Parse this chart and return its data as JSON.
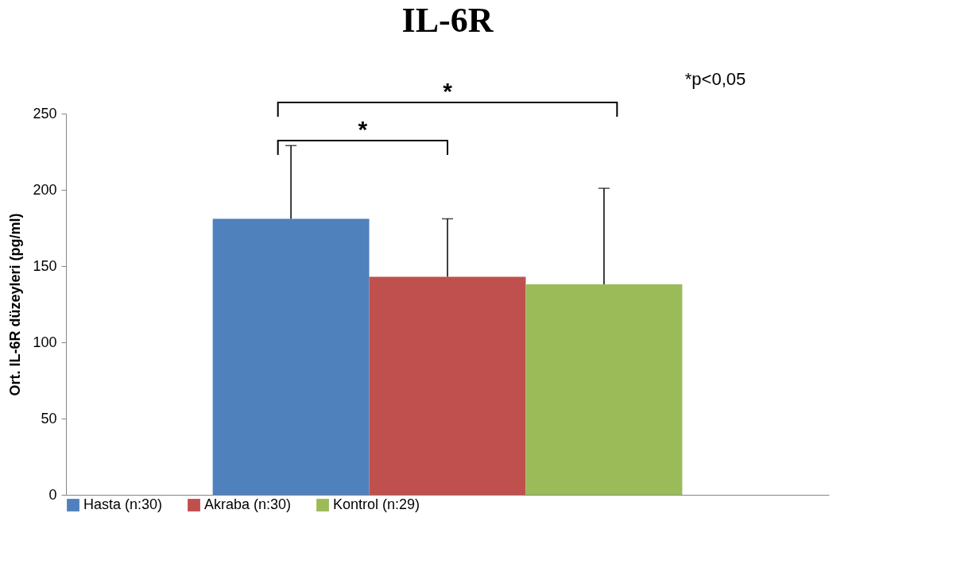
{
  "chart_data": {
    "type": "bar",
    "title": "IL-6R",
    "ylabel": "Ort. IL-6R düzeyleri  (pg/ml)",
    "categories": [
      null
    ],
    "series": [
      {
        "name": "Hasta (n:30)",
        "color": "#4f81bd",
        "values": [
          181
        ],
        "errors": [
          [
            181,
            229
          ]
        ]
      },
      {
        "name": "Akraba (n:30)",
        "color": "#c0504d",
        "values": [
          143
        ],
        "errors": [
          [
            143,
            181
          ]
        ]
      },
      {
        "name": "Kontrol (n:29)",
        "color": "#9bbb59",
        "values": [
          138
        ],
        "errors": [
          [
            138,
            201
          ]
        ]
      }
    ],
    "ylim": [
      0,
      250
    ],
    "yticks": [
      0,
      50,
      100,
      150,
      200,
      250
    ],
    "grid": false,
    "legend": "bottom",
    "tick_labels": "y",
    "annotations": [
      "*",
      "*",
      "*p<0,05"
    ]
  }
}
